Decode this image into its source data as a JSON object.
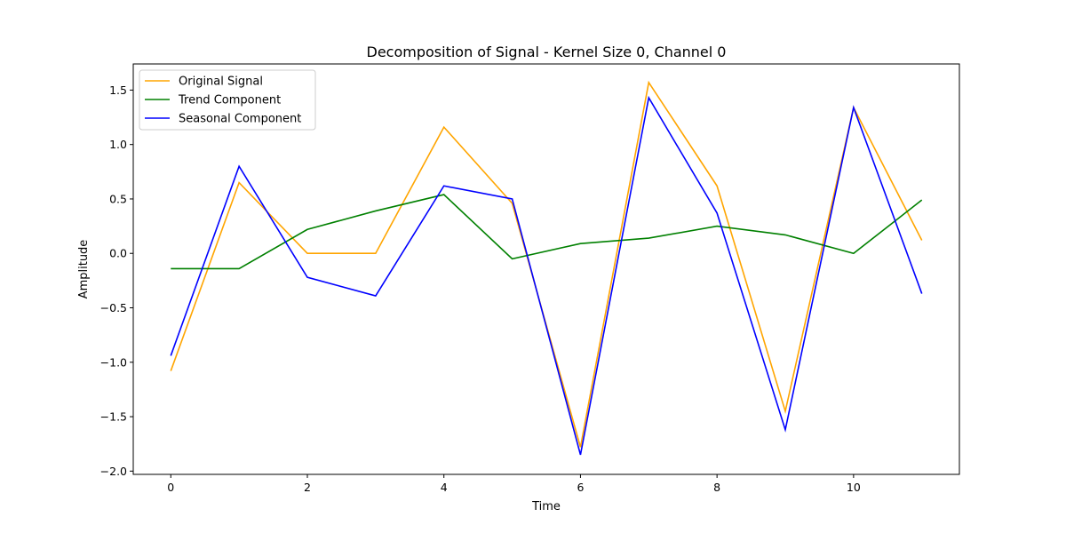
{
  "chart_data": {
    "type": "line",
    "title": "Decomposition of Signal - Kernel Size 0, Channel 0",
    "xlabel": "Time",
    "ylabel": "Amplitude",
    "x": [
      0,
      1,
      2,
      3,
      4,
      5,
      6,
      7,
      8,
      9,
      10,
      11
    ],
    "xlim": [
      -0.55,
      11.55
    ],
    "ylim": [
      -2.03,
      1.74
    ],
    "xticks": [
      0,
      2,
      4,
      6,
      8,
      10
    ],
    "yticks": [
      -2.0,
      -1.5,
      -1.0,
      -0.5,
      0.0,
      0.5,
      1.0,
      1.5
    ],
    "ytick_labels": [
      "−2.0",
      "−1.5",
      "−1.0",
      "−0.5",
      "0.0",
      "0.5",
      "1.0",
      "1.5"
    ],
    "grid": false,
    "legend_position": "top-left",
    "series": [
      {
        "name": "Original Signal",
        "color": "#ffa500",
        "values": [
          -1.08,
          0.65,
          0.0,
          0.0,
          1.16,
          0.46,
          -1.78,
          1.57,
          0.62,
          -1.45,
          1.34,
          0.12
        ]
      },
      {
        "name": "Trend Component",
        "color": "#008000",
        "values": [
          -0.14,
          -0.14,
          0.22,
          0.39,
          0.54,
          -0.05,
          0.09,
          0.14,
          0.25,
          0.17,
          0.0,
          0.49
        ]
      },
      {
        "name": "Seasonal Component",
        "color": "#0000ff",
        "values": [
          -0.94,
          0.8,
          -0.22,
          -0.39,
          0.62,
          0.5,
          -1.85,
          1.43,
          0.37,
          -1.62,
          1.34,
          -0.37
        ]
      }
    ]
  }
}
